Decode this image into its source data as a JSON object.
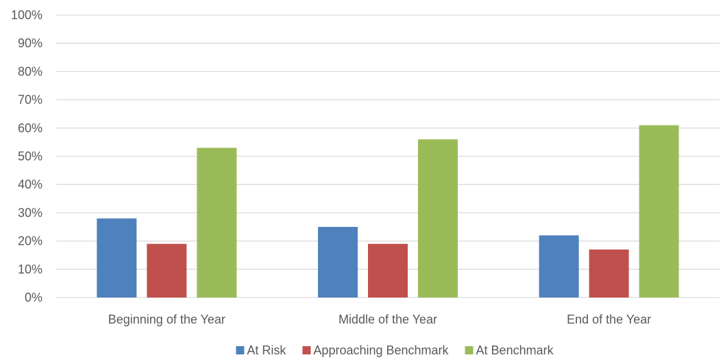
{
  "chart_data": {
    "type": "bar",
    "title": "",
    "xlabel": "",
    "ylabel": "",
    "categories": [
      "Beginning of the Year",
      "Middle of the Year",
      "End of the Year"
    ],
    "series": [
      {
        "name": "At Risk",
        "values": [
          28,
          25,
          22
        ],
        "color": "#4F81BD"
      },
      {
        "name": "Approaching Benchmark",
        "values": [
          19,
          19,
          17
        ],
        "color": "#C0504D"
      },
      {
        "name": "At Benchmark",
        "values": [
          53,
          56,
          61
        ],
        "color": "#9BBB59"
      }
    ],
    "ylim": [
      0,
      100
    ],
    "yticks": [
      0,
      10,
      20,
      30,
      40,
      50,
      60,
      70,
      80,
      90,
      100
    ],
    "ytick_labels": [
      "0%",
      "10%",
      "20%",
      "30%",
      "40%",
      "50%",
      "60%",
      "70%",
      "80%",
      "90%",
      "100%"
    ],
    "grid": true,
    "gridline_color": "#D9D9D9",
    "legend_position": "bottom"
  }
}
